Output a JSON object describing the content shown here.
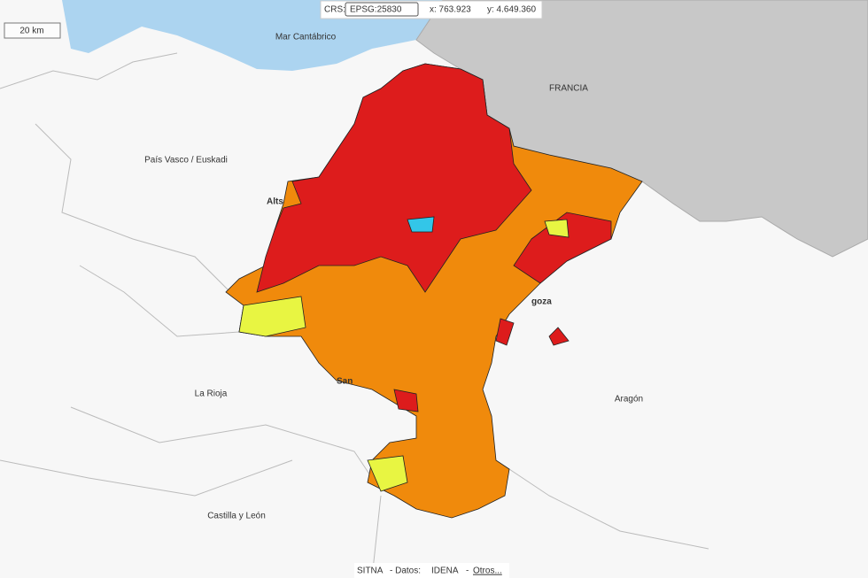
{
  "toolbar": {
    "crs_label": "CRS:",
    "crs_value": "EPSG:25830",
    "x_coord": "x: 763.923",
    "y_coord": "y: 4.649.360"
  },
  "scale": "20 km",
  "labels": {
    "sea": "Mar Cantábrico",
    "france": "FRANCIA",
    "basque": "País Vasco / Euskadi",
    "rioja": "La Rioja",
    "aragon": "Aragón",
    "castilla": "Castilla y León",
    "alts": "Alts",
    "san": "San",
    "goza": "goza"
  },
  "attribution": {
    "sitna": "SITNA",
    "datos": "- Datos:",
    "idena": "IDENA",
    "sep": "-",
    "otros": "Otros..."
  }
}
